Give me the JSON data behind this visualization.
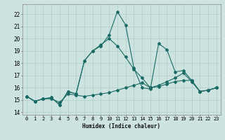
{
  "xlabel": "Humidex (Indice chaleur)",
  "ylabel": "",
  "xlim": [
    -0.5,
    23.5
  ],
  "ylim": [
    13.8,
    22.8
  ],
  "yticks": [
    14,
    15,
    16,
    17,
    18,
    19,
    20,
    21,
    22
  ],
  "xticks": [
    0,
    1,
    2,
    3,
    4,
    5,
    6,
    7,
    8,
    9,
    10,
    11,
    12,
    13,
    14,
    15,
    16,
    17,
    18,
    19,
    20,
    21,
    22,
    23
  ],
  "bg_color": "#cde3e0",
  "grid_color": "#b0cecc",
  "line_color": "#1a6b65",
  "series": [
    [
      15.3,
      14.9,
      15.1,
      15.1,
      14.8,
      15.5,
      15.4,
      15.3,
      15.4,
      15.5,
      15.6,
      15.8,
      16.0,
      16.2,
      16.4,
      16.0,
      16.1,
      16.3,
      16.5,
      16.6,
      16.6,
      15.7,
      15.8,
      16.0
    ],
    [
      15.3,
      14.9,
      15.1,
      15.2,
      14.6,
      15.7,
      15.5,
      18.2,
      19.0,
      19.5,
      20.0,
      19.4,
      18.5,
      17.5,
      16.8,
      16.0,
      16.2,
      16.5,
      16.8,
      17.2,
      16.5,
      15.7,
      15.8,
      16.0
    ],
    [
      15.3,
      14.9,
      15.1,
      15.2,
      14.6,
      15.7,
      15.5,
      18.2,
      19.0,
      19.4,
      20.3,
      22.2,
      21.1,
      17.6,
      16.0,
      15.9,
      19.6,
      19.1,
      17.3,
      17.4,
      16.6,
      15.7,
      15.8,
      16.0
    ]
  ]
}
